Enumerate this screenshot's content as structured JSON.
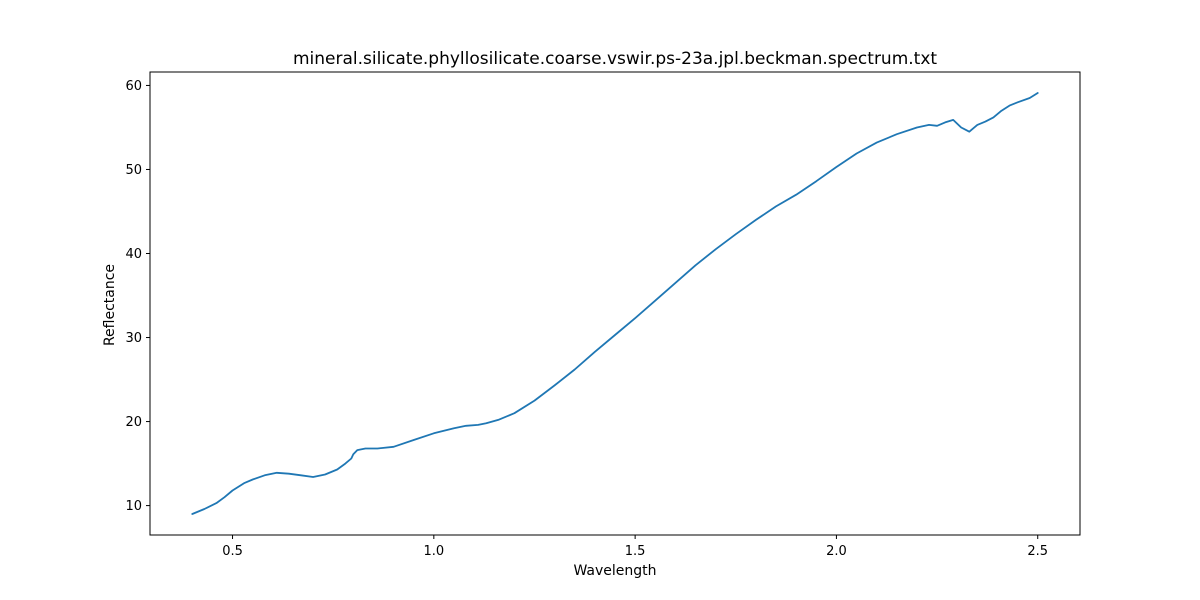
{
  "chart_data": {
    "type": "line",
    "title": "mineral.silicate.phyllosilicate.coarse.vswir.ps-23a.jpl.beckman.spectrum.txt",
    "xlabel": "Wavelength",
    "ylabel": "Reflectance",
    "xlim": [
      0.295,
      2.605
    ],
    "ylim": [
      6.5,
      61.6
    ],
    "xticks": [
      0.5,
      1.0,
      1.5,
      2.0,
      2.5
    ],
    "xtick_labels": [
      "0.5",
      "1.0",
      "1.5",
      "2.0",
      "2.5"
    ],
    "yticks": [
      10,
      20,
      30,
      40,
      50,
      60
    ],
    "ytick_labels": [
      "10",
      "20",
      "30",
      "40",
      "50",
      "60"
    ],
    "grid": false,
    "series": [
      {
        "color": "#1f77b4",
        "x": [
          0.4,
          0.43,
          0.46,
          0.48,
          0.5,
          0.53,
          0.55,
          0.58,
          0.61,
          0.64,
          0.67,
          0.7,
          0.73,
          0.76,
          0.78,
          0.795,
          0.8,
          0.81,
          0.83,
          0.86,
          0.9,
          0.95,
          1.0,
          1.05,
          1.08,
          1.11,
          1.13,
          1.16,
          1.2,
          1.25,
          1.3,
          1.35,
          1.4,
          1.45,
          1.5,
          1.55,
          1.6,
          1.65,
          1.7,
          1.75,
          1.8,
          1.85,
          1.9,
          1.95,
          2.0,
          2.05,
          2.1,
          2.15,
          2.2,
          2.23,
          2.25,
          2.27,
          2.29,
          2.31,
          2.33,
          2.35,
          2.37,
          2.39,
          2.41,
          2.43,
          2.45,
          2.48,
          2.5
        ],
        "y": [
          9.0,
          9.6,
          10.3,
          11.0,
          11.8,
          12.7,
          13.1,
          13.6,
          13.9,
          13.8,
          13.6,
          13.4,
          13.7,
          14.3,
          15.0,
          15.6,
          16.1,
          16.6,
          16.8,
          16.8,
          17.0,
          17.8,
          18.6,
          19.2,
          19.5,
          19.6,
          19.8,
          20.2,
          21.0,
          22.5,
          24.3,
          26.2,
          28.3,
          30.3,
          32.3,
          34.4,
          36.5,
          38.6,
          40.5,
          42.3,
          44.0,
          45.6,
          47.0,
          48.6,
          50.3,
          51.9,
          53.2,
          54.2,
          55.0,
          55.3,
          55.2,
          55.6,
          55.9,
          55.0,
          54.5,
          55.3,
          55.7,
          56.2,
          57.0,
          57.6,
          58.0,
          58.5,
          59.1
        ]
      }
    ]
  }
}
